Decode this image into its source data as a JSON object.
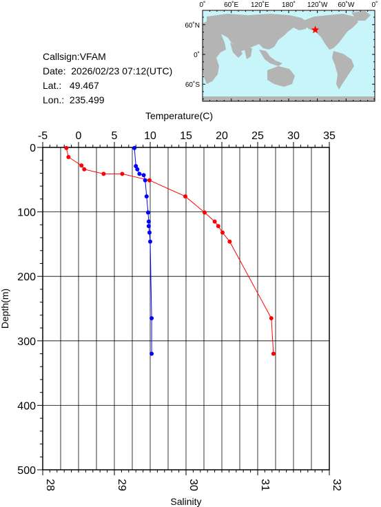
{
  "info": {
    "callsign": "Callsign:VFAM",
    "date": "Date:  2026/02/23 07:12(UTC)",
    "lat": "Lat.:   49.467",
    "lon": "Lon.:  235.499"
  },
  "map": {
    "top_ticks": [
      "0˚",
      "60˚E",
      "120˚E",
      "180˚",
      "120˚W",
      "60˚W",
      "0˚"
    ],
    "lat_ticks": [
      "60˚N",
      "0˚",
      "60˚S"
    ],
    "ocean_color": "#c8f5fa",
    "land_color": "#b4b4b4",
    "marker_color": "#ff0000",
    "marker": {
      "lon": 235.499,
      "lat": 49.467
    }
  },
  "chart_data": {
    "type": "line",
    "ylabel": "Depth(m)",
    "ylim": [
      500,
      0
    ],
    "yticks": [
      "0",
      "100",
      "200",
      "300",
      "400",
      "500"
    ],
    "grid": true,
    "temperature_axis": {
      "label": "Temperature(C)",
      "range": [
        -5,
        35
      ],
      "ticks": [
        "-5",
        "0",
        "5",
        "10",
        "15",
        "20",
        "25",
        "30",
        "35"
      ]
    },
    "salinity_axis": {
      "label": "Salinity",
      "range": [
        28,
        32
      ],
      "ticks": [
        "28",
        "29",
        "30",
        "31",
        "32"
      ]
    },
    "series": [
      {
        "axis": "temperature",
        "color": "#ff0000",
        "points": [
          [
            -1.7,
            1
          ],
          [
            -1.4,
            15
          ],
          [
            0.4,
            28
          ],
          [
            0.8,
            34
          ],
          [
            3.5,
            41
          ],
          [
            6.1,
            41
          ],
          [
            9.9,
            51
          ],
          [
            14.9,
            76
          ],
          [
            17.6,
            101
          ],
          [
            19.0,
            115
          ],
          [
            19.5,
            122
          ],
          [
            20.1,
            132
          ],
          [
            21.1,
            146
          ],
          [
            26.9,
            265
          ],
          [
            27.2,
            320
          ]
        ]
      },
      {
        "axis": "salinity",
        "color": "#0000ff",
        "points": [
          [
            29.28,
            1
          ],
          [
            29.3,
            29
          ],
          [
            29.32,
            34
          ],
          [
            29.35,
            41
          ],
          [
            29.41,
            43
          ],
          [
            29.43,
            51
          ],
          [
            29.45,
            76
          ],
          [
            29.47,
            101
          ],
          [
            29.48,
            115
          ],
          [
            29.48,
            122
          ],
          [
            29.49,
            132
          ],
          [
            29.5,
            146
          ],
          [
            29.52,
            265
          ],
          [
            29.52,
            320
          ]
        ]
      }
    ]
  }
}
